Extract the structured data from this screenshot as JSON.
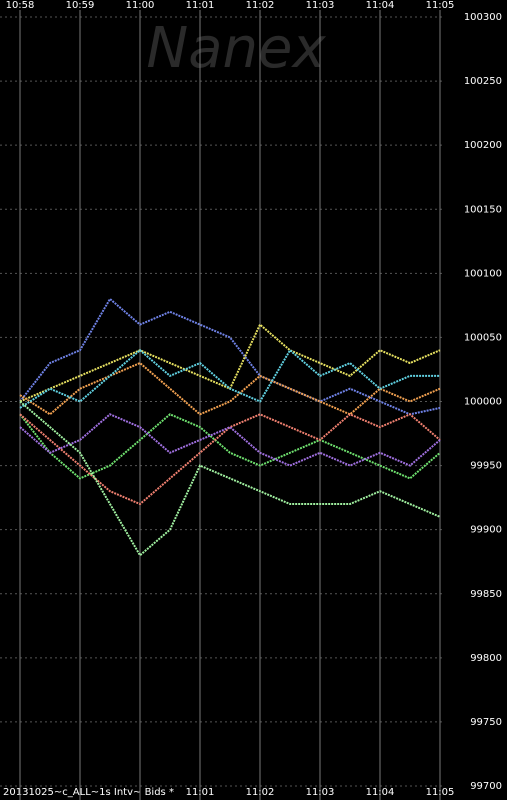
{
  "chart_data": {
    "type": "line",
    "watermark": "Nanex",
    "footer": "20131025~c_ALL~1s Intv~ Bids *",
    "xlim": [
      658,
      665
    ],
    "ylim": [
      99700,
      100300
    ],
    "xticks": [
      {
        "value": 658,
        "label": "10:58"
      },
      {
        "value": 659,
        "label": "10:59"
      },
      {
        "value": 660,
        "label": "11:00"
      },
      {
        "value": 661,
        "label": "11:01"
      },
      {
        "value": 662,
        "label": "11:02"
      },
      {
        "value": 663,
        "label": "11:03"
      },
      {
        "value": 664,
        "label": "11:04"
      },
      {
        "value": 665,
        "label": "11:05"
      }
    ],
    "yticks": [
      99700,
      99750,
      99800,
      99850,
      99900,
      99950,
      100000,
      100050,
      100100,
      100150,
      100200,
      100250,
      100300
    ],
    "x": [
      658,
      658.5,
      659,
      659.5,
      660,
      660.5,
      661,
      661.5,
      662,
      662.5,
      663,
      663.5,
      664,
      664.5,
      665
    ],
    "series": [
      {
        "color": "#6f82e6",
        "values": [
          100000,
          100030,
          100040,
          100080,
          100060,
          100070,
          100060,
          100050,
          100020,
          100010,
          100000,
          100010,
          100000,
          99990,
          99995
        ]
      },
      {
        "color": "#6ee06e",
        "values": [
          99990,
          99960,
          99940,
          99950,
          99970,
          99990,
          99980,
          99960,
          99950,
          99960,
          99970,
          99960,
          99950,
          99940,
          99960
        ]
      },
      {
        "color": "#e6e060",
        "values": [
          100000,
          100010,
          100020,
          100030,
          100040,
          100030,
          100020,
          100010,
          100060,
          100040,
          100030,
          100020,
          100040,
          100030,
          100040
        ]
      },
      {
        "color": "#f0a050",
        "values": [
          100005,
          99990,
          100010,
          100020,
          100030,
          100010,
          99990,
          100000,
          100020,
          100010,
          100000,
          99990,
          100010,
          100000,
          100010
        ]
      },
      {
        "color": "#60d0e0",
        "values": [
          99995,
          100010,
          100000,
          100020,
          100040,
          100020,
          100030,
          100010,
          100000,
          100040,
          100020,
          100030,
          100010,
          100020,
          100020
        ]
      },
      {
        "color": "#f08070",
        "values": [
          99990,
          99970,
          99950,
          99930,
          99920,
          99940,
          99960,
          99980,
          99990,
          99980,
          99970,
          99990,
          99980,
          99990,
          99970
        ]
      },
      {
        "color": "#a070e0",
        "values": [
          99980,
          99960,
          99970,
          99990,
          99980,
          99960,
          99970,
          99980,
          99960,
          99950,
          99960,
          99950,
          99960,
          99950,
          99970
        ]
      },
      {
        "color": "#a0f0a0",
        "values": [
          100000,
          99980,
          99960,
          99920,
          99880,
          99900,
          99950,
          99940,
          99930,
          99920,
          99920,
          99920,
          99930,
          99920,
          99910
        ]
      }
    ]
  }
}
